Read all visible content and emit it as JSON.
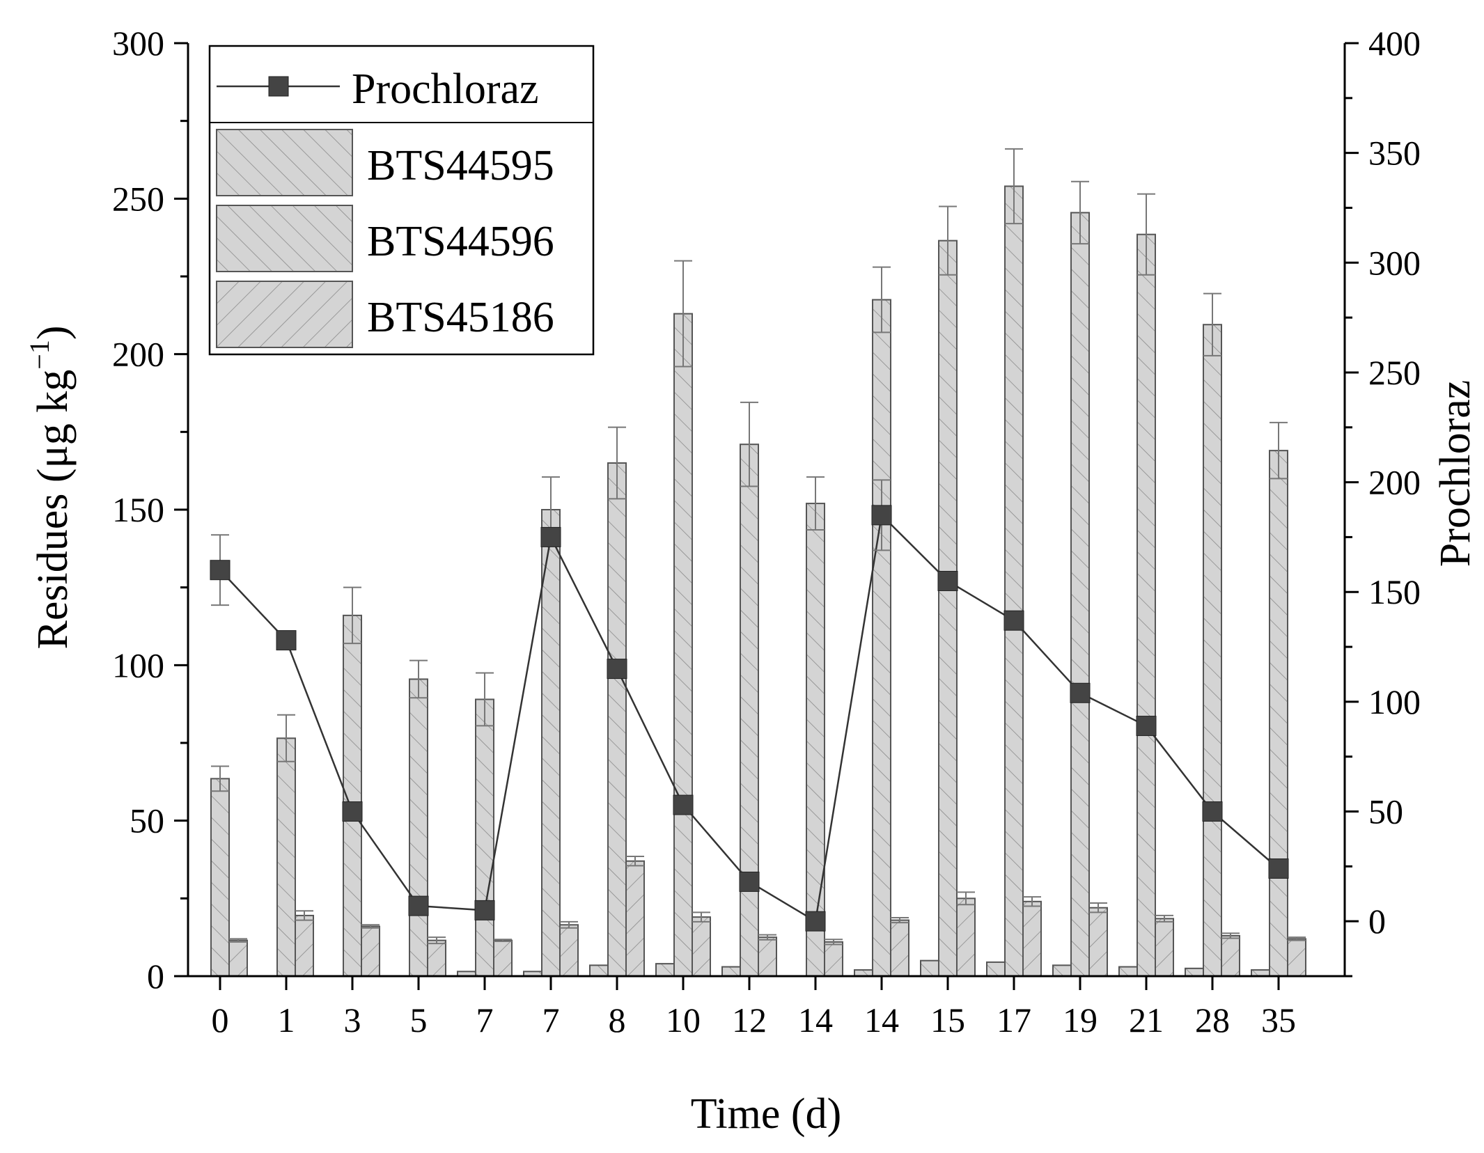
{
  "chart_data": {
    "type": "bar+line",
    "xlabel": "Time (d)",
    "ylabel": "Residues (μg kg",
    "ylabel_sup": "−1",
    "ylabel_close": ")",
    "y2label": "Prochloraz",
    "ylim": [
      0,
      300
    ],
    "yticks": [
      0,
      50,
      100,
      150,
      200,
      250,
      300
    ],
    "y2lim": [
      -25,
      400
    ],
    "y2ticks": [
      0,
      50,
      100,
      150,
      200,
      250,
      300,
      350,
      400
    ],
    "categories": [
      "0",
      "1",
      "3",
      "5",
      "7",
      "7",
      "8",
      "10",
      "12",
      "14",
      "14",
      "15",
      "17",
      "19",
      "21",
      "28",
      "35"
    ],
    "bar_series": [
      {
        "name": "BTS44595",
        "values": [
          0,
          0,
          0,
          0,
          1.5,
          1.5,
          3.5,
          4,
          3,
          0,
          2,
          5,
          4.5,
          3.5,
          3,
          2.5,
          2
        ],
        "errors": [
          0,
          0,
          0,
          0,
          0,
          0,
          0,
          0,
          0,
          0,
          0,
          0,
          0,
          0,
          0,
          0,
          0
        ]
      },
      {
        "name": "BTS44596",
        "values": [
          63.5,
          76.5,
          116,
          95.5,
          89,
          150,
          165,
          213,
          171,
          152,
          217.5,
          236.5,
          254,
          245.5,
          238.5,
          209.5,
          169
        ],
        "errors": [
          4,
          7.5,
          9,
          6,
          8.5,
          10.5,
          11.5,
          17,
          13.5,
          8.5,
          10.5,
          11,
          12,
          10,
          13,
          10,
          9
        ]
      },
      {
        "name": "BTS45186",
        "values": [
          11.5,
          19.5,
          16,
          11.5,
          11.5,
          16.5,
          37,
          19,
          12.5,
          11,
          18,
          25,
          24,
          22,
          18.5,
          13,
          12
        ],
        "errors": [
          0.5,
          1.5,
          0.5,
          1,
          0.3,
          1,
          1.5,
          1.5,
          0.8,
          0.8,
          0.8,
          2,
          1.5,
          1.5,
          1,
          0.8,
          0.5
        ]
      }
    ],
    "line_series": {
      "name": "Prochloraz",
      "axis": "right",
      "values": [
        160,
        128,
        50,
        7,
        5,
        175,
        115,
        53,
        18,
        0,
        185,
        155,
        137,
        104,
        89,
        50,
        24
      ],
      "errors": [
        16,
        4,
        0,
        0,
        0,
        0,
        0,
        0,
        0,
        0,
        16,
        0,
        0,
        0,
        0,
        0,
        0
      ]
    },
    "legend_position": "top-left"
  }
}
